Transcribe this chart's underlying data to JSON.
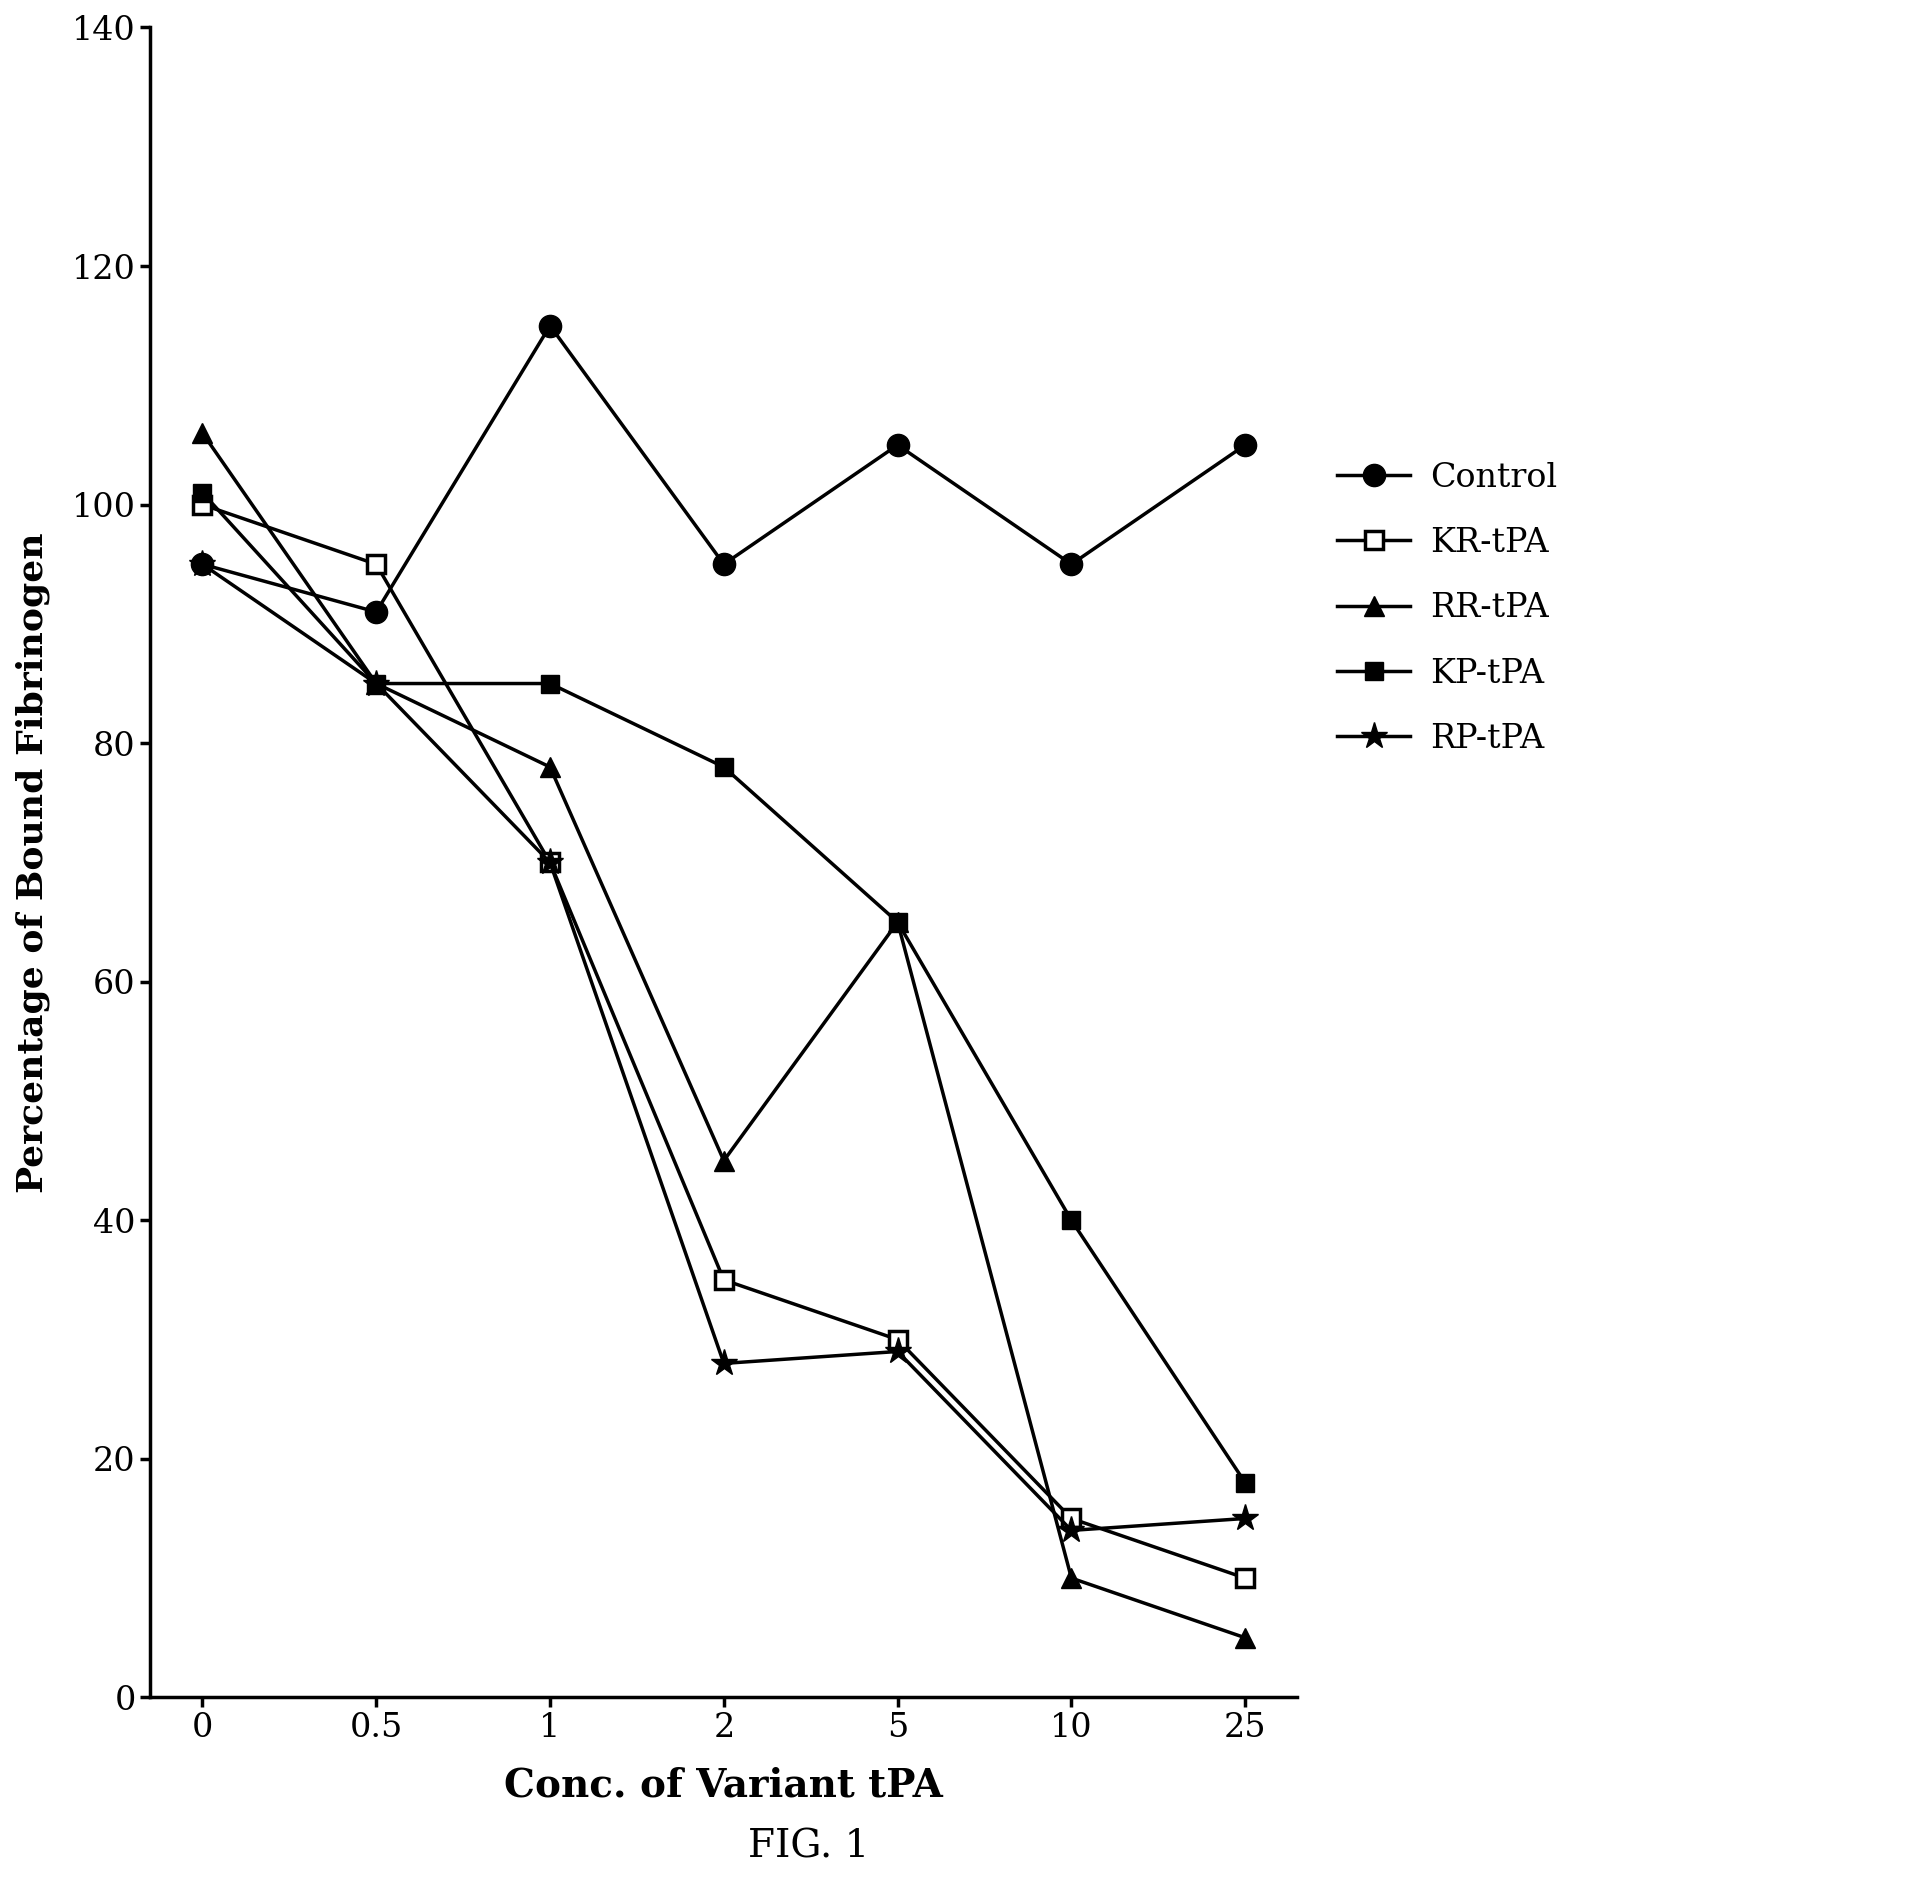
{
  "x_positions": [
    0,
    1,
    2,
    3,
    4,
    5,
    6
  ],
  "x_labels": [
    "0",
    "0.5",
    "1",
    "2",
    "5",
    "10",
    "25"
  ],
  "control": [
    95,
    91,
    115,
    95,
    105,
    95,
    105
  ],
  "kr_tpa": [
    100,
    95,
    70,
    35,
    30,
    15,
    10
  ],
  "rr_tpa": [
    106,
    85,
    78,
    45,
    65,
    10,
    5
  ],
  "kp_tpa": [
    101,
    85,
    85,
    78,
    65,
    40,
    18
  ],
  "rp_tpa": [
    95,
    85,
    70,
    28,
    29,
    14,
    15
  ],
  "xlabel": "Conc. of Variant tPA",
  "ylabel": "Percentage of Bound Fibrinogen",
  "ylim": [
    0,
    140
  ],
  "yticks": [
    0,
    20,
    40,
    60,
    80,
    100,
    120,
    140
  ],
  "fig_label": "FIG. 1",
  "legend_labels": [
    "Control",
    "KR-tPA",
    "RR-tPA",
    "KP-tPA",
    "RP-tPA"
  ],
  "background_color": "#ffffff",
  "line_color": "#000000"
}
